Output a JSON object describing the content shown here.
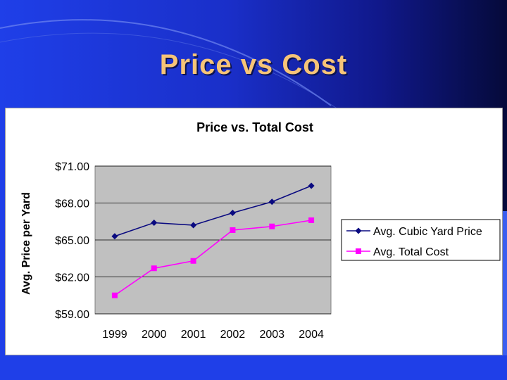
{
  "slide": {
    "title": "Price vs Cost",
    "colors": {
      "title": "#f6c478",
      "background_left": "#1f3fe8",
      "background_right": "#050a3a"
    }
  },
  "chart_data": {
    "type": "line",
    "title": "Price vs. Total Cost",
    "xlabel": "",
    "ylabel": "Avg. Price per Yard",
    "categories": [
      "1999",
      "2000",
      "2001",
      "2002",
      "2003",
      "2004"
    ],
    "ylim": [
      59.0,
      71.0
    ],
    "yticks": [
      59.0,
      62.0,
      65.0,
      68.0,
      71.0
    ],
    "ytick_labels": [
      "$59.00",
      "$62.00",
      "$65.00",
      "$68.00",
      "$71.00"
    ],
    "grid": true,
    "legend_position": "right",
    "plot_background": "#c0c0c0",
    "series": [
      {
        "name": "Avg. Cubic Yard Price",
        "values": [
          65.3,
          66.4,
          66.2,
          67.2,
          68.1,
          69.4
        ],
        "color": "#0a0a80",
        "marker": "diamond"
      },
      {
        "name": "Avg. Total Cost",
        "values": [
          60.5,
          62.7,
          63.3,
          65.8,
          66.1,
          66.6
        ],
        "color": "#ff00ff",
        "marker": "square"
      }
    ]
  }
}
